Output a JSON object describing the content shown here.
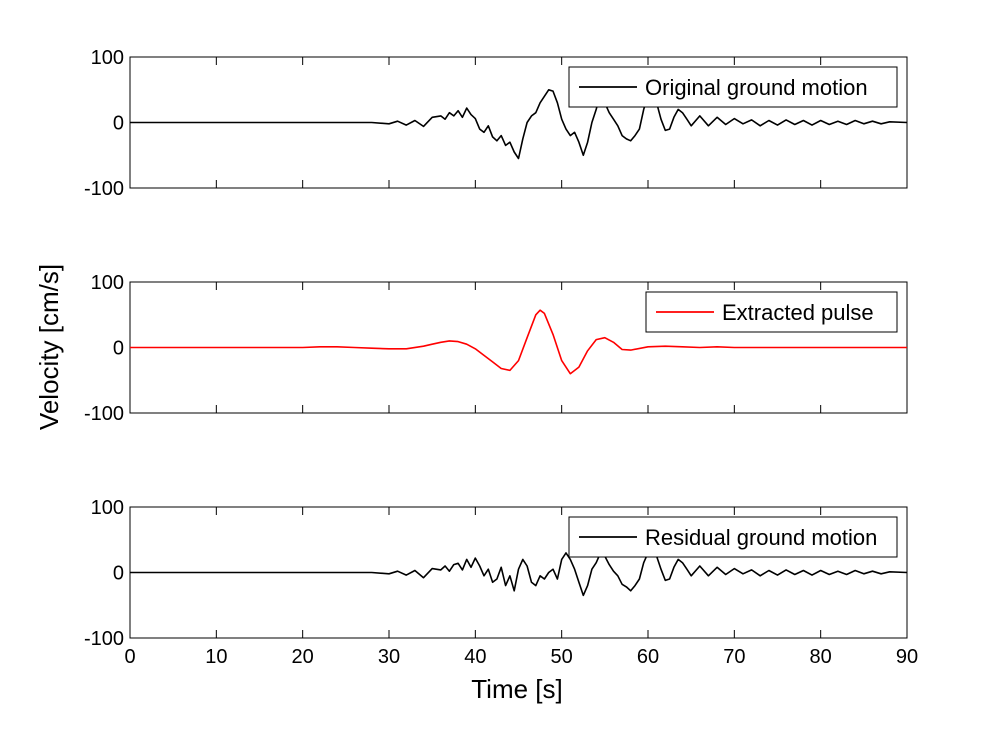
{
  "figure": {
    "ylabel": "Velocity [cm/s]",
    "xlabel": "Time [s]"
  },
  "chart_data": [
    {
      "type": "line",
      "legend_position": "top-right",
      "grid": false,
      "xlim": [
        0,
        90
      ],
      "ylim": [
        -100,
        100
      ],
      "yticks": [
        -100,
        0,
        100
      ],
      "xticks": [],
      "series": [
        {
          "name": "Original ground motion",
          "color": "#000000",
          "x": [
            0,
            28,
            30,
            31,
            32,
            33,
            34,
            35,
            36,
            36.5,
            37,
            37.5,
            38,
            38.5,
            39,
            39.5,
            40,
            40.5,
            41,
            41.5,
            42,
            42.5,
            43,
            43.5,
            44,
            44.5,
            45,
            45.5,
            46,
            46.5,
            47,
            47.5,
            48,
            48.5,
            49,
            49.5,
            50,
            50.5,
            51,
            51.5,
            52,
            52.5,
            53,
            53.5,
            54,
            54.5,
            55,
            55.5,
            56,
            56.5,
            57,
            57.5,
            58,
            58.5,
            59,
            59.5,
            60,
            60.5,
            61,
            61.5,
            62,
            62.5,
            63,
            63.5,
            64,
            64.5,
            65,
            66,
            67,
            68,
            69,
            70,
            71,
            72,
            73,
            74,
            75,
            76,
            77,
            78,
            79,
            80,
            81,
            82,
            83,
            84,
            85,
            86,
            87,
            88,
            90
          ],
          "values": [
            0,
            0,
            -2,
            2,
            -4,
            3,
            -6,
            8,
            10,
            5,
            15,
            10,
            18,
            8,
            22,
            12,
            6,
            -10,
            -15,
            -5,
            -22,
            -28,
            -20,
            -35,
            -30,
            -45,
            -55,
            -25,
            0,
            10,
            15,
            30,
            40,
            50,
            48,
            30,
            5,
            -10,
            -20,
            -15,
            -30,
            -50,
            -30,
            0,
            20,
            45,
            30,
            15,
            5,
            -5,
            -20,
            -25,
            -28,
            -20,
            -10,
            20,
            40,
            45,
            30,
            5,
            -12,
            -10,
            8,
            20,
            15,
            5,
            -5,
            10,
            -5,
            8,
            -3,
            6,
            -2,
            4,
            -5,
            3,
            -4,
            4,
            -3,
            3,
            -4,
            3,
            -3,
            2,
            -3,
            3,
            -2,
            2,
            -2,
            1,
            0
          ]
        }
      ]
    },
    {
      "type": "line",
      "legend_position": "top-right",
      "grid": false,
      "xlim": [
        0,
        90
      ],
      "ylim": [
        -100,
        100
      ],
      "yticks": [
        -100,
        0,
        100
      ],
      "xticks": [],
      "series": [
        {
          "name": "Extracted pulse",
          "color": "#ff0000",
          "x": [
            0,
            20,
            22,
            24,
            26,
            28,
            30,
            32,
            34,
            35,
            36,
            37,
            38,
            39,
            40,
            41,
            42,
            43,
            44,
            45,
            46,
            47,
            47.5,
            48,
            49,
            50,
            51,
            52,
            53,
            54,
            55,
            56,
            57,
            58,
            60,
            62,
            64,
            66,
            68,
            70,
            90
          ],
          "values": [
            0,
            0,
            1,
            1,
            0,
            -1,
            -2,
            -2,
            2,
            5,
            8,
            10,
            9,
            5,
            -2,
            -12,
            -22,
            -32,
            -35,
            -20,
            15,
            50,
            57,
            52,
            20,
            -20,
            -40,
            -30,
            -5,
            12,
            15,
            8,
            -3,
            -4,
            1,
            2,
            1,
            0,
            1,
            0,
            0
          ]
        }
      ]
    },
    {
      "type": "line",
      "legend_position": "top-right",
      "grid": false,
      "xlim": [
        0,
        90
      ],
      "ylim": [
        -100,
        100
      ],
      "yticks": [
        -100,
        0,
        100
      ],
      "xticks": [
        0,
        10,
        20,
        30,
        40,
        50,
        60,
        70,
        80,
        90
      ],
      "series": [
        {
          "name": "Residual ground motion",
          "color": "#000000",
          "x": [
            0,
            28,
            30,
            31,
            32,
            33,
            34,
            35,
            36,
            36.5,
            37,
            37.5,
            38,
            38.5,
            39,
            39.5,
            40,
            40.5,
            41,
            41.5,
            42,
            42.5,
            43,
            43.5,
            44,
            44.5,
            45,
            45.5,
            46,
            46.5,
            47,
            47.5,
            48,
            48.5,
            49,
            49.5,
            50,
            50.5,
            51,
            51.5,
            52,
            52.5,
            53,
            53.5,
            54,
            54.5,
            55,
            55.5,
            56,
            56.5,
            57,
            57.5,
            58,
            58.5,
            59,
            59.5,
            60,
            60.5,
            61,
            61.5,
            62,
            62.5,
            63,
            63.5,
            64,
            64.5,
            65,
            66,
            67,
            68,
            69,
            70,
            71,
            72,
            73,
            74,
            75,
            76,
            77,
            78,
            79,
            80,
            81,
            82,
            83,
            84,
            85,
            86,
            87,
            88,
            90
          ],
          "values": [
            0,
            0,
            -2,
            2,
            -4,
            3,
            -8,
            6,
            4,
            10,
            2,
            12,
            14,
            4,
            20,
            8,
            22,
            10,
            -5,
            5,
            -15,
            -10,
            8,
            -20,
            -5,
            -28,
            5,
            20,
            10,
            -15,
            -20,
            -5,
            -10,
            0,
            5,
            -10,
            20,
            30,
            20,
            5,
            -15,
            -35,
            -20,
            5,
            15,
            30,
            25,
            12,
            2,
            -5,
            -18,
            -22,
            -28,
            -20,
            -10,
            15,
            30,
            40,
            25,
            5,
            -12,
            -10,
            8,
            20,
            15,
            5,
            -5,
            10,
            -5,
            8,
            -3,
            6,
            -2,
            4,
            -5,
            3,
            -4,
            4,
            -3,
            3,
            -4,
            3,
            -3,
            2,
            -3,
            3,
            -2,
            2,
            -2,
            1,
            0
          ]
        }
      ]
    }
  ]
}
